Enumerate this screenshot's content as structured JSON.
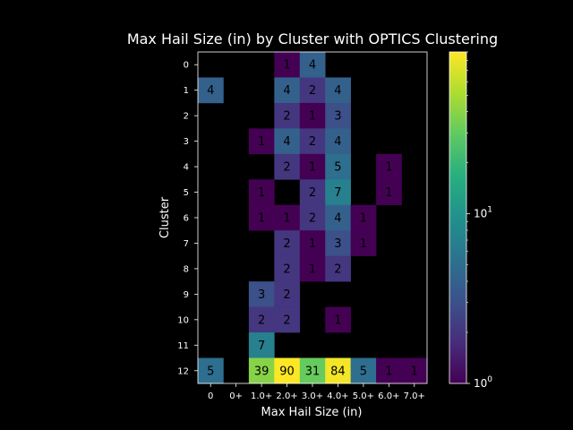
{
  "chart_data": {
    "type": "heatmap",
    "title": "Max Hail Size (in) by Cluster with OPTICS Clustering",
    "xlabel": "Max Hail Size (in)",
    "ylabel": "Cluster",
    "x_categories": [
      "0",
      "0+",
      "1.0+",
      "2.0+",
      "3.0+",
      "4.0+",
      "5.0+",
      "6.0+",
      "7.0+"
    ],
    "y_categories": [
      "0",
      "1",
      "2",
      "3",
      "4",
      "5",
      "6",
      "7",
      "8",
      "9",
      "10",
      "11",
      "12"
    ],
    "values": [
      [
        null,
        null,
        null,
        1,
        4,
        null,
        null,
        null,
        null
      ],
      [
        4,
        null,
        null,
        4,
        2,
        4,
        null,
        null,
        null
      ],
      [
        null,
        null,
        null,
        2,
        1,
        3,
        null,
        null,
        null
      ],
      [
        null,
        null,
        1,
        4,
        2,
        4,
        null,
        null,
        null
      ],
      [
        null,
        null,
        null,
        2,
        1,
        5,
        null,
        1,
        null
      ],
      [
        null,
        null,
        1,
        null,
        2,
        7,
        null,
        1,
        null
      ],
      [
        null,
        null,
        1,
        1,
        2,
        4,
        1,
        null,
        null
      ],
      [
        null,
        null,
        null,
        2,
        1,
        3,
        1,
        null,
        null
      ],
      [
        null,
        null,
        null,
        2,
        1,
        2,
        null,
        null,
        null
      ],
      [
        null,
        null,
        3,
        2,
        null,
        null,
        null,
        null,
        null
      ],
      [
        null,
        null,
        2,
        2,
        null,
        1,
        null,
        null,
        null
      ],
      [
        null,
        null,
        7,
        null,
        null,
        null,
        null,
        null,
        null
      ],
      [
        5,
        null,
        39,
        90,
        31,
        84,
        5,
        1,
        1
      ]
    ],
    "colormap": "viridis",
    "color_scale": "log",
    "colorbar_range": [
      1,
      90
    ],
    "colorbar_ticks": [
      {
        "value": 1,
        "base": "10",
        "exp": "0"
      },
      {
        "value": 10,
        "base": "10",
        "exp": "1"
      }
    ],
    "background_color": "#000000"
  }
}
